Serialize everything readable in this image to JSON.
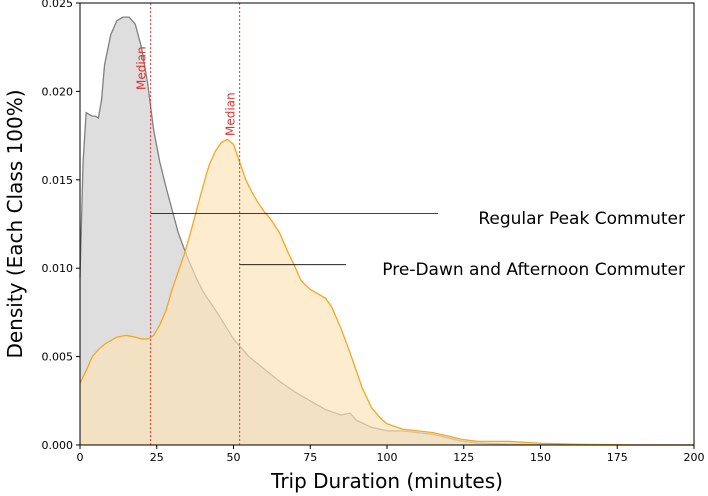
{
  "chart_data": {
    "type": "area",
    "title": "",
    "xlabel": "Trip Duration (minutes)",
    "ylabel": "Density (Each Class 100%)",
    "xlim": [
      0,
      200
    ],
    "ylim": [
      0,
      0.025
    ],
    "xticks": [
      "0",
      "25",
      "50",
      "75",
      "100",
      "125",
      "150",
      "175",
      "200"
    ],
    "yticks": [
      "0.000",
      "0.005",
      "0.010",
      "0.015",
      "0.020",
      "0.025"
    ],
    "grid": false,
    "series": [
      {
        "name": "Regular Peak Commuter",
        "color": "#808080",
        "fill": "#d8d8d8",
        "median": 23,
        "x": [
          0,
          1,
          2,
          3,
          4,
          5,
          6,
          7,
          8,
          10,
          12,
          14,
          16,
          18,
          20,
          22,
          24,
          26,
          28,
          30,
          32,
          35,
          38,
          40,
          45,
          50,
          55,
          60,
          65,
          70,
          75,
          80,
          85,
          88,
          90,
          95,
          100,
          105,
          110,
          115,
          120,
          125,
          130,
          140,
          150,
          160,
          175,
          200
        ],
        "y": [
          0.0095,
          0.016,
          0.0188,
          0.0187,
          0.0186,
          0.0186,
          0.0185,
          0.0195,
          0.0215,
          0.0232,
          0.024,
          0.0242,
          0.0242,
          0.0238,
          0.0225,
          0.0205,
          0.0178,
          0.016,
          0.0146,
          0.0133,
          0.012,
          0.0106,
          0.0094,
          0.0087,
          0.0074,
          0.006,
          0.005,
          0.0043,
          0.0036,
          0.003,
          0.0025,
          0.002,
          0.0017,
          0.0018,
          0.0014,
          0.001,
          0.0008,
          0.0008,
          0.0007,
          0.0006,
          0.0004,
          0.0002,
          0.0001,
          5e-05,
          2e-05,
          1e-05,
          0,
          0
        ]
      },
      {
        "name": "Pre-Dawn and Afternoon Commuter",
        "color": "#f5a623",
        "fill": "#fde2b5",
        "median": 52,
        "x": [
          0,
          2,
          4,
          6,
          8,
          10,
          12,
          15,
          18,
          20,
          22,
          24,
          26,
          28,
          30,
          32,
          34,
          36,
          38,
          40,
          42,
          44,
          46,
          48,
          50,
          52,
          54,
          56,
          58,
          60,
          62,
          65,
          68,
          70,
          72,
          75,
          78,
          80,
          82,
          85,
          88,
          90,
          92,
          95,
          98,
          100,
          105,
          110,
          115,
          120,
          125,
          130,
          140,
          150,
          160,
          175,
          200
        ],
        "y": [
          0.0035,
          0.0042,
          0.005,
          0.0054,
          0.0057,
          0.0059,
          0.0061,
          0.0062,
          0.0061,
          0.006,
          0.006,
          0.0062,
          0.0068,
          0.0076,
          0.0088,
          0.0098,
          0.0108,
          0.012,
          0.0133,
          0.0146,
          0.0158,
          0.0166,
          0.0171,
          0.0173,
          0.017,
          0.016,
          0.015,
          0.0143,
          0.0137,
          0.0132,
          0.0128,
          0.012,
          0.0108,
          0.0101,
          0.0093,
          0.0088,
          0.0085,
          0.0083,
          0.0078,
          0.0066,
          0.0052,
          0.0042,
          0.0032,
          0.0021,
          0.0015,
          0.0012,
          0.0009,
          0.0008,
          0.0007,
          0.0005,
          0.0003,
          0.0002,
          0.0002,
          0.0001,
          5e-05,
          1e-05,
          0
        ]
      }
    ],
    "annotations": [
      {
        "text": "Median",
        "x": 23,
        "series": 0
      },
      {
        "text": "Median",
        "x": 52,
        "series": 1
      },
      {
        "text": "Regular Peak Commuter",
        "x": 23,
        "y": 0.0131,
        "series": 0
      },
      {
        "text": "Pre-Dawn and Afternoon Commuter",
        "x": 52,
        "y": 0.0102,
        "series": 1
      }
    ]
  }
}
